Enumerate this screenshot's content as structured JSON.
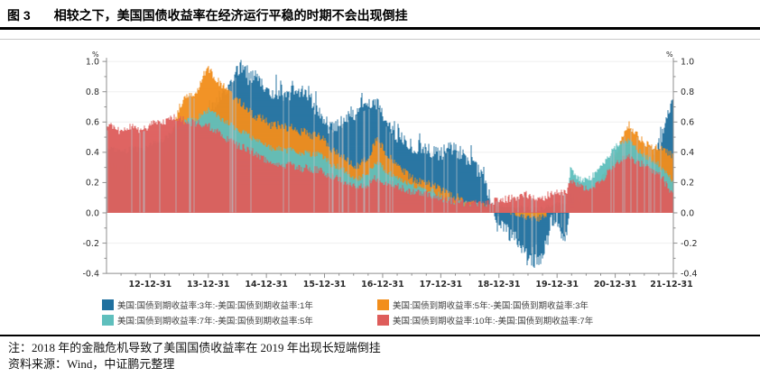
{
  "title": {
    "figure_label": "图 3",
    "text": "相较之下，美国国债收益率在经济运行平稳的时期不会出现倒挂"
  },
  "note": "注：2018 年的金融危机导致了美国国债收益率在 2019 年出现长短端倒挂",
  "source": "资料来源：Wind，中证鹏元整理",
  "chart_data": {
    "type": "bar",
    "title": "相较之下，美国国债收益率在经济运行平稳的时期不会出现倒挂",
    "grid": true,
    "legend_position": "bottom",
    "y_axis": {
      "unit": "%",
      "min": -0.4,
      "max": 1.0,
      "step": 0.2,
      "tick_labels": [
        "1.0",
        "0.8",
        "0.6",
        "0.4",
        "0.2",
        "0.0",
        "-0.2",
        "-0.4"
      ],
      "mirrored_right": true
    },
    "x_axis": {
      "start": "2012-04",
      "frequency": "monthly",
      "ticks": [
        {
          "label": "12-12-31",
          "month": 9
        },
        {
          "label": "13-12-31",
          "month": 21
        },
        {
          "label": "14-12-31",
          "month": 33
        },
        {
          "label": "15-12-31",
          "month": 45
        },
        {
          "label": "16-12-31",
          "month": 57
        },
        {
          "label": "17-12-31",
          "month": 69
        },
        {
          "label": "18-12-31",
          "month": 81
        },
        {
          "label": "19-12-31",
          "month": 93
        },
        {
          "label": "20-12-31",
          "month": 105
        },
        {
          "label": "21-12-31",
          "month": 117
        }
      ]
    },
    "series": [
      {
        "name": "美国:国债到期收益率:3年:-美国:国债到期收益率:1年",
        "color": "#1F709F",
        "values": [
          0.18,
          0.19,
          0.18,
          0.17,
          0.18,
          0.19,
          0.18,
          0.18,
          0.19,
          0.2,
          0.22,
          0.23,
          0.25,
          0.3,
          0.38,
          0.44,
          0.48,
          0.52,
          0.5,
          0.55,
          0.62,
          0.68,
          0.72,
          0.76,
          0.8,
          0.85,
          0.9,
          0.95,
          0.97,
          0.93,
          0.9,
          0.87,
          0.86,
          0.82,
          0.78,
          0.8,
          0.79,
          0.78,
          0.8,
          0.78,
          0.8,
          0.79,
          0.72,
          0.68,
          0.62,
          0.58,
          0.56,
          0.58,
          0.6,
          0.62,
          0.64,
          0.66,
          0.68,
          0.7,
          0.71,
          0.72,
          0.7,
          0.6,
          0.55,
          0.52,
          0.5,
          0.48,
          0.45,
          0.43,
          0.42,
          0.44,
          0.42,
          0.4,
          0.38,
          0.4,
          0.42,
          0.44,
          0.4,
          0.38,
          0.35,
          0.32,
          0.28,
          0.22,
          0.15,
          0.05,
          -0.08,
          -0.1,
          -0.12,
          -0.15,
          -0.18,
          -0.22,
          -0.28,
          -0.3,
          -0.33,
          -0.28,
          -0.2,
          -0.12,
          -0.08,
          -0.1,
          -0.18,
          0.15,
          0.05,
          0.04,
          0.04,
          0.05,
          0.06,
          0.07,
          0.08,
          0.09,
          0.1,
          0.1,
          0.12,
          0.14,
          0.15,
          0.17,
          0.22,
          0.28,
          0.35,
          0.45,
          0.52,
          0.65,
          0.72
        ]
      },
      {
        "name": "美国:国债到期收益率:5年:-美国:国债到期收益率:3年",
        "color": "#F28E1C",
        "values": [
          0.3,
          0.31,
          0.29,
          0.28,
          0.29,
          0.31,
          0.3,
          0.3,
          0.31,
          0.33,
          0.35,
          0.36,
          0.38,
          0.45,
          0.6,
          0.7,
          0.76,
          0.8,
          0.78,
          0.85,
          0.92,
          0.95,
          0.9,
          0.86,
          0.83,
          0.8,
          0.77,
          0.74,
          0.71,
          0.68,
          0.65,
          0.63,
          0.62,
          0.6,
          0.57,
          0.58,
          0.57,
          0.56,
          0.57,
          0.55,
          0.53,
          0.54,
          0.51,
          0.52,
          0.5,
          0.46,
          0.42,
          0.4,
          0.38,
          0.35,
          0.33,
          0.31,
          0.32,
          0.35,
          0.4,
          0.48,
          0.46,
          0.4,
          0.36,
          0.33,
          0.3,
          0.27,
          0.24,
          0.22,
          0.21,
          0.2,
          0.19,
          0.18,
          0.16,
          0.14,
          0.12,
          0.11,
          0.1,
          0.08,
          0.07,
          0.06,
          0.05,
          0.04,
          0.03,
          0.02,
          0.02,
          0.02,
          0.01,
          0.01,
          0.0,
          -0.01,
          -0.02,
          -0.03,
          -0.05,
          -0.03,
          0.0,
          0.02,
          0.03,
          0.03,
          0.02,
          0.1,
          0.08,
          0.09,
          0.11,
          0.13,
          0.16,
          0.2,
          0.26,
          0.32,
          0.38,
          0.45,
          0.52,
          0.58,
          0.54,
          0.5,
          0.47,
          0.45,
          0.44,
          0.43,
          0.42,
          0.4,
          0.38
        ]
      },
      {
        "name": "美国:国债到期收益率:7年:-美国:国债到期收益率:5年",
        "color": "#5FBFBD",
        "values": [
          0.42,
          0.43,
          0.41,
          0.4,
          0.41,
          0.43,
          0.42,
          0.42,
          0.43,
          0.45,
          0.47,
          0.48,
          0.49,
          0.52,
          0.56,
          0.58,
          0.6,
          0.62,
          0.61,
          0.64,
          0.66,
          0.68,
          0.66,
          0.63,
          0.61,
          0.59,
          0.57,
          0.55,
          0.53,
          0.51,
          0.49,
          0.47,
          0.46,
          0.44,
          0.42,
          0.43,
          0.42,
          0.41,
          0.42,
          0.4,
          0.39,
          0.4,
          0.38,
          0.39,
          0.38,
          0.35,
          0.32,
          0.31,
          0.3,
          0.27,
          0.25,
          0.23,
          0.23,
          0.25,
          0.28,
          0.33,
          0.32,
          0.28,
          0.26,
          0.25,
          0.23,
          0.21,
          0.19,
          0.18,
          0.17,
          0.16,
          0.15,
          0.14,
          0.12,
          0.1,
          0.09,
          0.08,
          0.07,
          0.06,
          0.06,
          0.05,
          0.05,
          0.04,
          0.04,
          0.05,
          0.05,
          0.05,
          0.04,
          0.04,
          0.03,
          0.03,
          0.03,
          0.02,
          0.02,
          0.03,
          0.04,
          0.05,
          0.06,
          0.06,
          0.05,
          0.3,
          0.25,
          0.22,
          0.22,
          0.23,
          0.26,
          0.3,
          0.34,
          0.39,
          0.43,
          0.46,
          0.48,
          0.47,
          0.44,
          0.41,
          0.38,
          0.36,
          0.34,
          0.32,
          0.28,
          0.24,
          0.21
        ]
      },
      {
        "name": "美国:国债到期收益率:10年:-美国:国债到期收益率:7年",
        "color": "#DE5D5B",
        "values": [
          0.56,
          0.57,
          0.55,
          0.54,
          0.55,
          0.57,
          0.56,
          0.55,
          0.56,
          0.58,
          0.6,
          0.61,
          0.6,
          0.62,
          0.63,
          0.62,
          0.61,
          0.6,
          0.59,
          0.6,
          0.58,
          0.57,
          0.55,
          0.53,
          0.5,
          0.48,
          0.46,
          0.44,
          0.43,
          0.42,
          0.4,
          0.38,
          0.36,
          0.34,
          0.32,
          0.33,
          0.32,
          0.31,
          0.32,
          0.3,
          0.29,
          0.3,
          0.28,
          0.29,
          0.28,
          0.26,
          0.24,
          0.23,
          0.22,
          0.2,
          0.18,
          0.17,
          0.17,
          0.18,
          0.2,
          0.23,
          0.22,
          0.2,
          0.19,
          0.18,
          0.17,
          0.16,
          0.14,
          0.14,
          0.13,
          0.12,
          0.12,
          0.11,
          0.1,
          0.09,
          0.08,
          0.08,
          0.07,
          0.07,
          0.06,
          0.06,
          0.06,
          0.05,
          0.06,
          0.07,
          0.08,
          0.09,
          0.09,
          0.1,
          0.1,
          0.11,
          0.12,
          0.1,
          0.08,
          0.09,
          0.11,
          0.13,
          0.14,
          0.14,
          0.12,
          0.22,
          0.2,
          0.18,
          0.17,
          0.16,
          0.18,
          0.2,
          0.24,
          0.28,
          0.32,
          0.34,
          0.36,
          0.37,
          0.35,
          0.33,
          0.31,
          0.3,
          0.28,
          0.26,
          0.22,
          0.16,
          0.12
        ]
      }
    ]
  },
  "legend": {
    "items": [
      {
        "series": 0
      },
      {
        "series": 1
      },
      {
        "series": 2
      },
      {
        "series": 3
      }
    ]
  }
}
